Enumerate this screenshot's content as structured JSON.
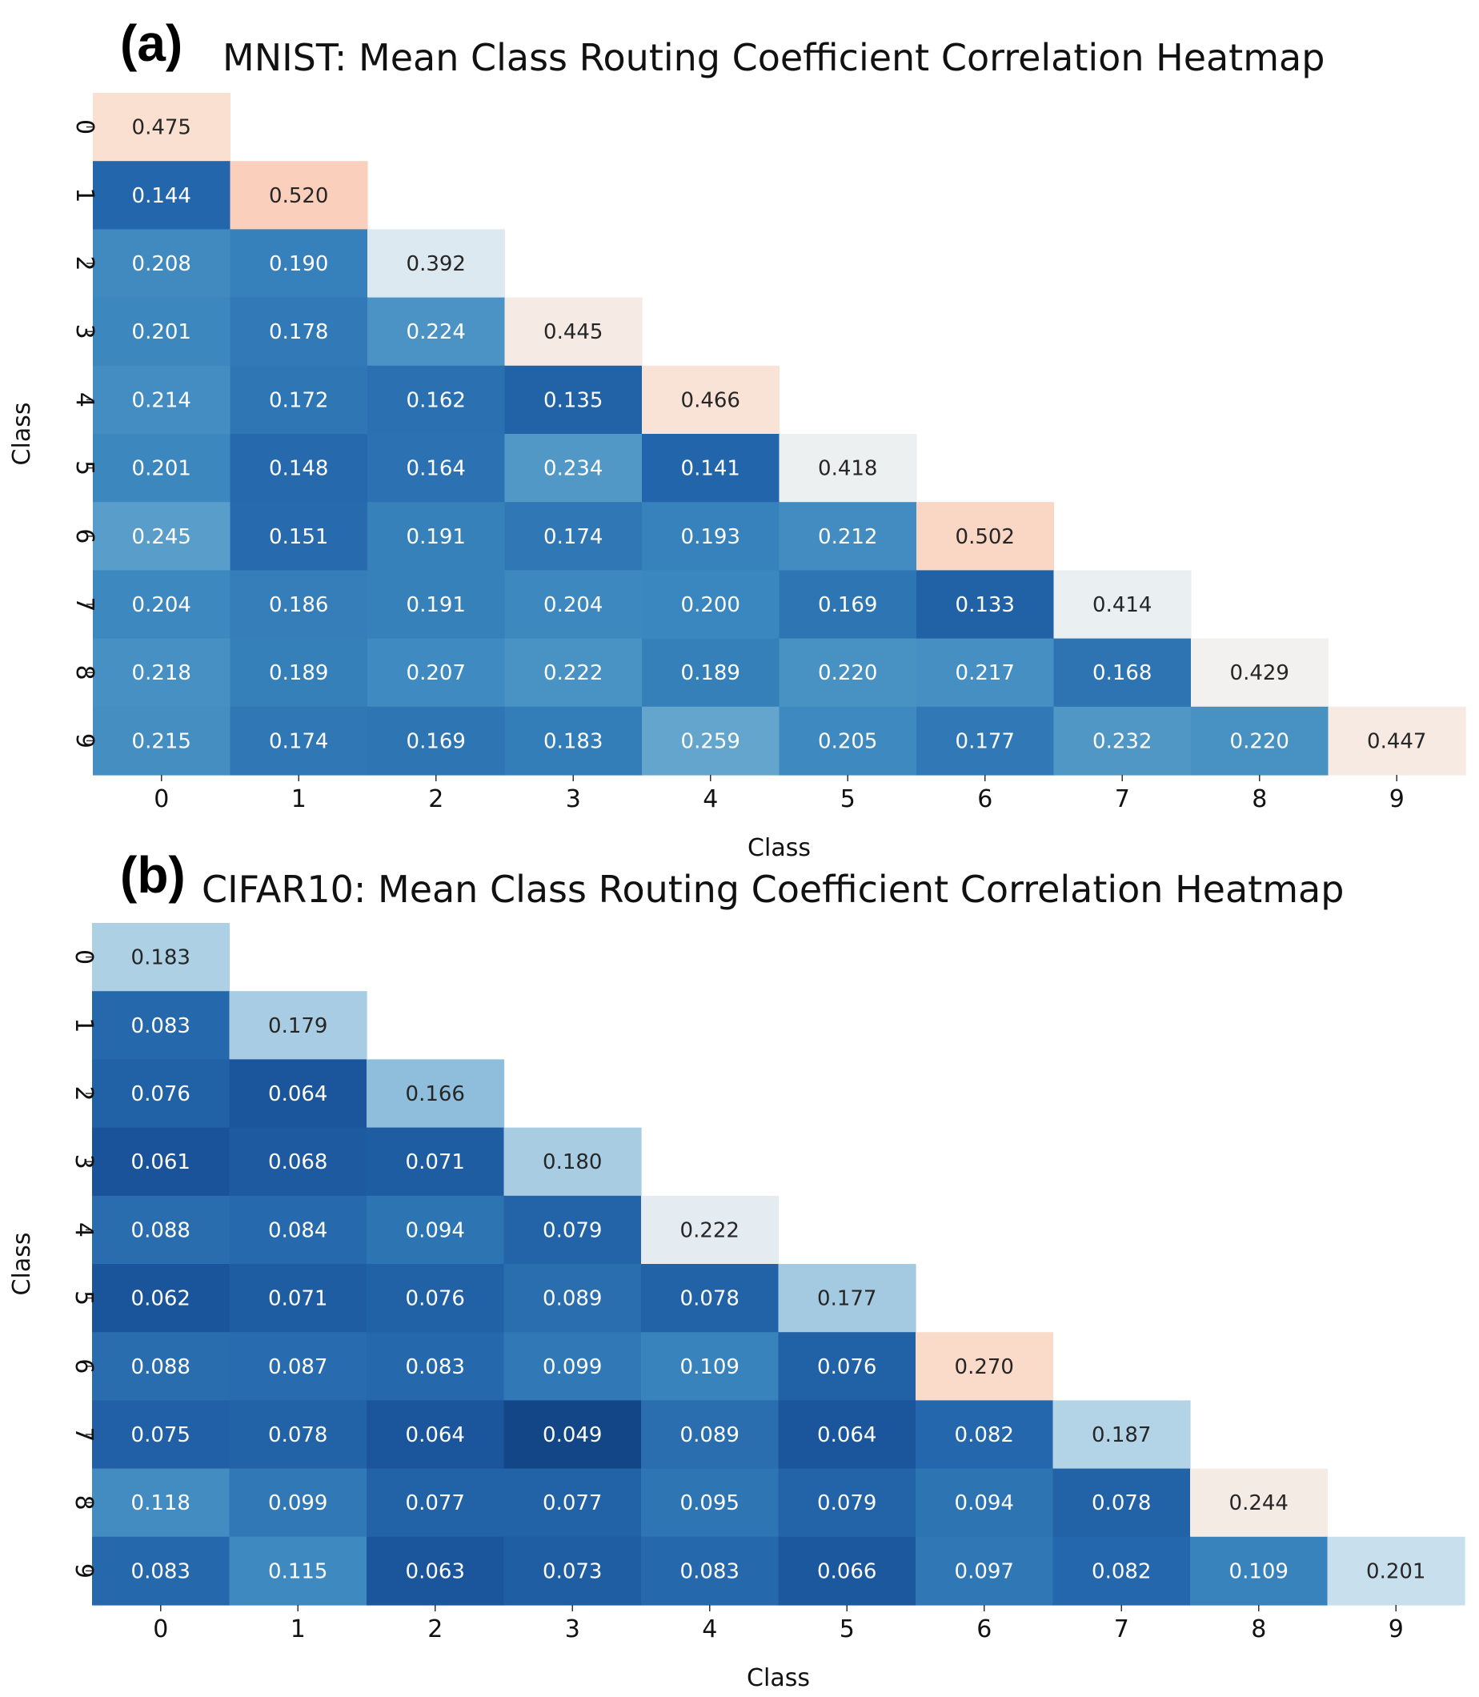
{
  "chart_data": [
    {
      "type": "heatmap",
      "panel_label": "(a)",
      "title": "MNIST: Mean Class Routing Coefficient Correlation Heatmap",
      "xlabel": "Class",
      "ylabel": "Class",
      "x_categories": [
        "0",
        "1",
        "2",
        "3",
        "4",
        "5",
        "6",
        "7",
        "8",
        "9"
      ],
      "y_categories": [
        "0",
        "1",
        "2",
        "3",
        "4",
        "5",
        "6",
        "7",
        "8",
        "9"
      ],
      "mask": "upper triangle (lower triangle incl. diagonal shown)",
      "color_scale": {
        "name": "RdBu_r",
        "vmin": 0.049,
        "vmax": 0.52
      },
      "values": [
        [
          0.475
        ],
        [
          0.144,
          0.52
        ],
        [
          0.208,
          0.19,
          0.392
        ],
        [
          0.201,
          0.178,
          0.224,
          0.445
        ],
        [
          0.214,
          0.172,
          0.162,
          0.135,
          0.466
        ],
        [
          0.201,
          0.148,
          0.164,
          0.234,
          0.141,
          0.418
        ],
        [
          0.245,
          0.151,
          0.191,
          0.174,
          0.193,
          0.212,
          0.502
        ],
        [
          0.204,
          0.186,
          0.191,
          0.204,
          0.2,
          0.169,
          0.133,
          0.414
        ],
        [
          0.218,
          0.189,
          0.207,
          0.222,
          0.189,
          0.22,
          0.217,
          0.168,
          0.429
        ],
        [
          0.215,
          0.174,
          0.169,
          0.183,
          0.259,
          0.205,
          0.177,
          0.232,
          0.22,
          0.447
        ]
      ]
    },
    {
      "type": "heatmap",
      "panel_label": "(b)",
      "title": "CIFAR10: Mean Class Routing Coefficient Correlation Heatmap",
      "xlabel": "Class",
      "ylabel": "Class",
      "x_categories": [
        "0",
        "1",
        "2",
        "3",
        "4",
        "5",
        "6",
        "7",
        "8",
        "9"
      ],
      "y_categories": [
        "0",
        "1",
        "2",
        "3",
        "4",
        "5",
        "6",
        "7",
        "8",
        "9"
      ],
      "mask": "upper triangle (lower triangle incl. diagonal shown)",
      "color_scale": {
        "name": "RdBu_r",
        "vmin": 0.03,
        "vmax": 0.285
      },
      "values": [
        [
          0.183
        ],
        [
          0.083,
          0.179
        ],
        [
          0.076,
          0.064,
          0.166
        ],
        [
          0.061,
          0.068,
          0.071,
          0.18
        ],
        [
          0.088,
          0.084,
          0.094,
          0.079,
          0.222
        ],
        [
          0.062,
          0.071,
          0.076,
          0.089,
          0.078,
          0.177
        ],
        [
          0.088,
          0.087,
          0.083,
          0.099,
          0.109,
          0.076,
          0.27
        ],
        [
          0.075,
          0.078,
          0.064,
          0.049,
          0.089,
          0.064,
          0.082,
          0.187
        ],
        [
          0.118,
          0.099,
          0.077,
          0.077,
          0.095,
          0.079,
          0.094,
          0.078,
          0.244
        ],
        [
          0.083,
          0.115,
          0.063,
          0.073,
          0.083,
          0.066,
          0.097,
          0.082,
          0.109,
          0.201
        ]
      ]
    }
  ]
}
